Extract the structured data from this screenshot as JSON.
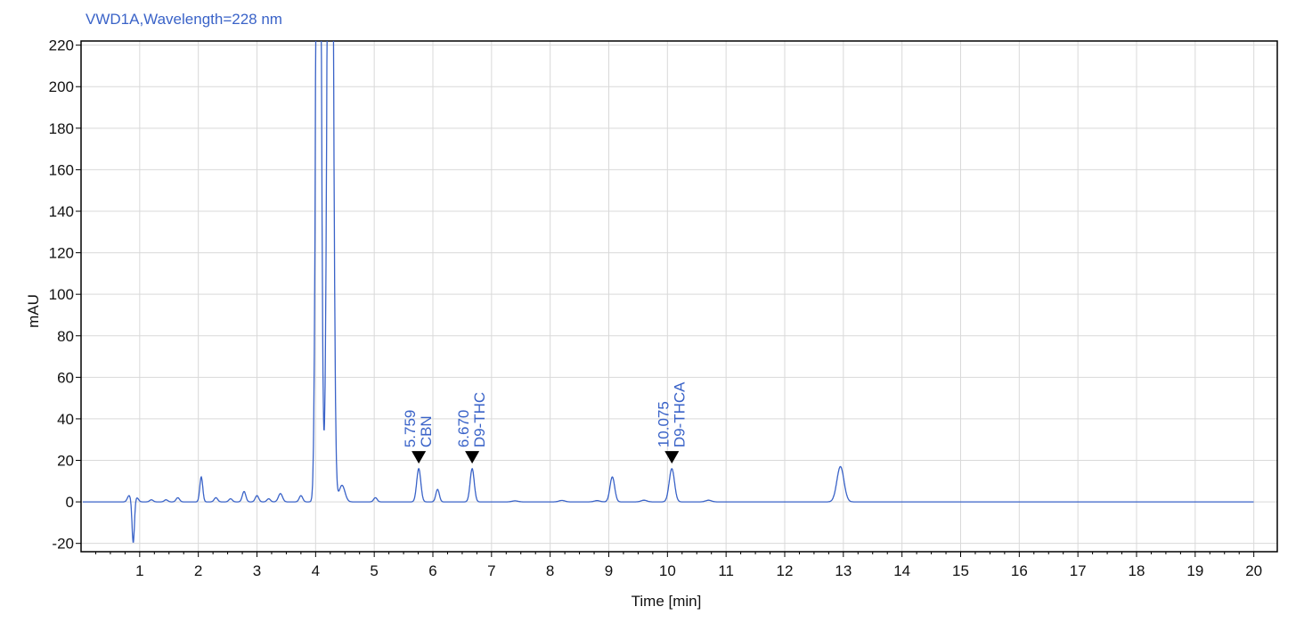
{
  "chart_data": {
    "type": "line",
    "title": "VWD1A,Wavelength=228 nm",
    "xlabel": "Time [min]",
    "ylabel": "mAU",
    "xlim": [
      0,
      20.4
    ],
    "ylim": [
      -24,
      222
    ],
    "xticks": [
      1,
      2,
      3,
      4,
      5,
      6,
      7,
      8,
      9,
      10,
      11,
      12,
      13,
      14,
      15,
      16,
      17,
      18,
      19,
      20
    ],
    "yticks": [
      -20,
      0,
      20,
      40,
      60,
      80,
      100,
      120,
      140,
      160,
      180,
      200,
      220
    ],
    "grid": true,
    "colors": {
      "trace": "#3a63c8",
      "grid": "#d9d9d9",
      "axis": "#000000"
    },
    "series": [
      {
        "baseline": 0,
        "peaks": [
          {
            "rt": 0.82,
            "height": 3,
            "width": 0.03
          },
          {
            "rt": 0.89,
            "height": -20,
            "width": 0.02
          },
          {
            "rt": 0.95,
            "height": 2,
            "width": 0.03
          },
          {
            "rt": 1.2,
            "height": 1,
            "width": 0.03
          },
          {
            "rt": 1.45,
            "height": 1,
            "width": 0.03
          },
          {
            "rt": 1.65,
            "height": 2,
            "width": 0.03
          },
          {
            "rt": 2.05,
            "height": 12,
            "width": 0.025
          },
          {
            "rt": 2.3,
            "height": 2,
            "width": 0.03
          },
          {
            "rt": 2.55,
            "height": 1.5,
            "width": 0.03
          },
          {
            "rt": 2.78,
            "height": 5,
            "width": 0.03
          },
          {
            "rt": 3.0,
            "height": 3,
            "width": 0.03
          },
          {
            "rt": 3.2,
            "height": 1.5,
            "width": 0.03
          },
          {
            "rt": 3.4,
            "height": 4,
            "width": 0.035
          },
          {
            "rt": 3.75,
            "height": 3,
            "width": 0.03
          },
          {
            "rt": 4.05,
            "height": 600,
            "width": 0.035
          },
          {
            "rt": 4.25,
            "height": 600,
            "width": 0.04
          },
          {
            "rt": 4.45,
            "height": 8,
            "width": 0.05
          },
          {
            "rt": 5.02,
            "height": 2,
            "width": 0.03
          },
          {
            "rt": 5.759,
            "height": 16,
            "width": 0.035
          },
          {
            "rt": 6.08,
            "height": 6,
            "width": 0.03
          },
          {
            "rt": 6.67,
            "height": 16,
            "width": 0.035
          },
          {
            "rt": 7.4,
            "height": 0.5,
            "width": 0.05
          },
          {
            "rt": 8.2,
            "height": 0.7,
            "width": 0.05
          },
          {
            "rt": 8.8,
            "height": 0.6,
            "width": 0.05
          },
          {
            "rt": 9.06,
            "height": 12,
            "width": 0.04
          },
          {
            "rt": 9.6,
            "height": 0.8,
            "width": 0.05
          },
          {
            "rt": 10.075,
            "height": 16,
            "width": 0.045
          },
          {
            "rt": 10.7,
            "height": 0.8,
            "width": 0.05
          },
          {
            "rt": 12.95,
            "height": 17,
            "width": 0.06
          }
        ]
      }
    ],
    "annotations": [
      {
        "rt": 5.759,
        "rt_label": "5.759",
        "compound": "CBN",
        "marker_y": 21
      },
      {
        "rt": 6.67,
        "rt_label": "6.670",
        "compound": "D9-THC",
        "marker_y": 21
      },
      {
        "rt": 10.075,
        "rt_label": "10.075",
        "compound": "D9-THCA",
        "marker_y": 21
      }
    ]
  }
}
